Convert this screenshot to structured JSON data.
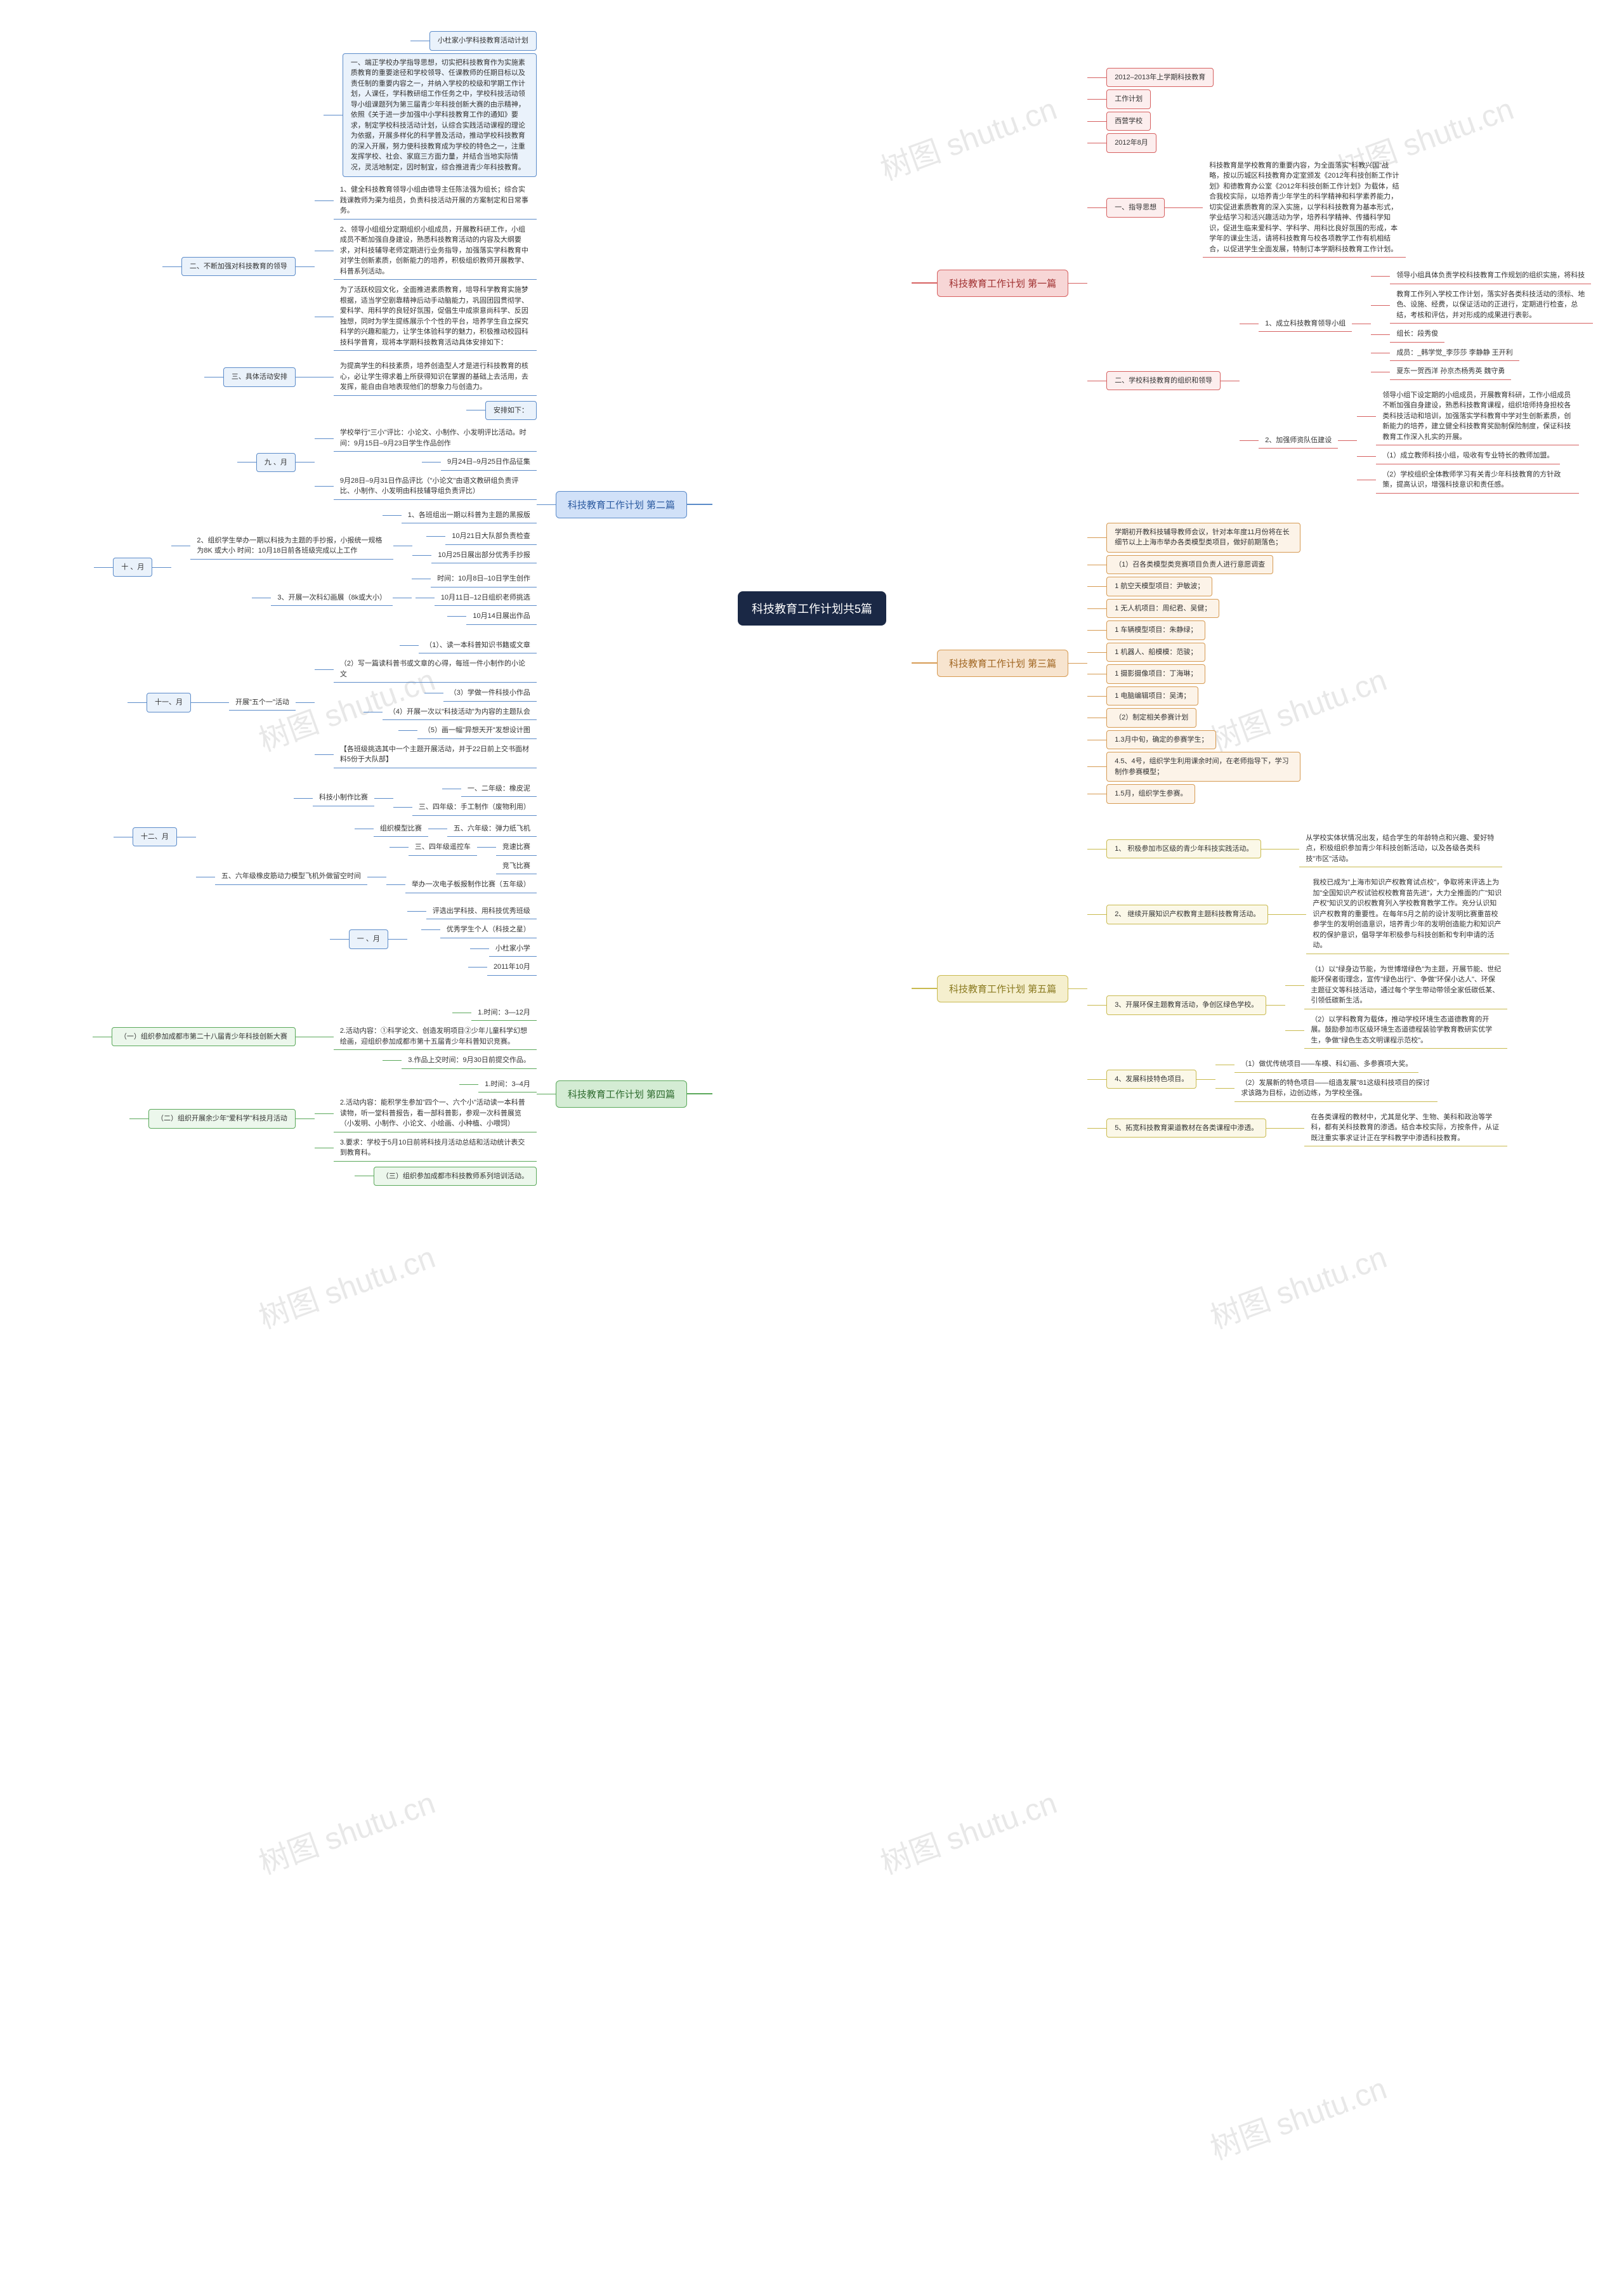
{
  "center": "科技教育工作计划共5篇",
  "watermarks": [
    "树图 shutu.cn",
    "树图 shutu.cn",
    "树图 shutu.cn",
    "树图 shutu.cn",
    "树图 shutu.cn",
    "树图 shutu.cn",
    "树图 shutu.cn",
    "树图 shutu.cn",
    "树图 shutu.cn"
  ],
  "branches": {
    "b2": {
      "label": "科技教育工作计划 第二篇",
      "side": "left",
      "color": "c-blue",
      "children": [
        {
          "t": "小杜家小学科技教育活动计划",
          "k": []
        },
        {
          "t": "一、端正学校办学指导思想，切实把科技教育作为实施素质教育的重要途径和学校领导、任课教师的任期目标以及责任制的重要内容之一，并纳入学校的校级和学期工作计划，人课任，学科教研组工作任务之中，学校科技活动领导小组课题列为第三届青少年科技创新大赛的由示精神，依照《关于进一步加强中小学科技教育工作的通知》要求，制定学校科技活动计划，认综合实践活动课程的理论为依据，开展多样化的科学普及活动，推动学校科技教育的深入开展，努力使科技教育成为学校的特色之一，注重发挥学校、社会、家庭三方面力量，并结合当地实际情况，灵活地制定，因时制宜，综合推进青少年科技教育。",
          "k": []
        },
        {
          "t": "二、不断加强对科技教育的领导",
          "k": [
            {
              "t": "1、健全科技教育领导小组由德导主任陈法强为组长；综合实践课教师为渠为组员，负责科技活动开展的方案制定和日常事务。"
            },
            {
              "t": "2、领导小组组分定期组织小组成员，开展教科研工作，小组成员不断加强自身建设，熟悉科技教育活动的内容及大纲要求，对科技辅导老师定期进行业务指导，加强落实学科教育中对学生创新素质，创新能力的培养，积极组织教师开展教学、科普系列活动。"
            },
            {
              "t": "为了活跃校园文化，全面推进素质教育，培导科学教育实施梦根据，适当学空剧靠精神后动手动脑能力，巩固团园贯彻学、爱科学、用科学的良轻好氛围，促倡生中成崇意尚科学、反因独想，同时为学生提练展示个个性的平台，培养学生自立探究科学的兴趣和能力，让学生体验科学的魅力，积极推动校园科技科学普育，现将本学期科技教育活动具体安排如下："
            }
          ]
        },
        {
          "t": "三、具体活动安排",
          "k": [
            {
              "t": "为提高学生的科技素质，培养创造型人才是进行科技教育的核心，必让学生得求着上所获得知识在掌握的基础上去活用，去发挥，能自由自地表现他们的想象力与创造力。"
            }
          ]
        },
        {
          "t": "安排如下：",
          "k": []
        },
        {
          "t": "九 、月",
          "k": [
            {
              "t": "学校举行\"三小\"评比：小论文、小制作、小发明评比活动。时间：9月15日–9月23日学生作品创作"
            },
            {
              "t": "9月24日–9月25日作品征集"
            },
            {
              "t": "9月28日–9月31日作品评比（\"小论文\"由语文教研组负责评比、小制作、小发明由科技辅导组负责评比）"
            }
          ]
        },
        {
          "t": "十 、月",
          "k": [
            {
              "t": "1、各班组出一期以科普为主题的黑报版"
            },
            {
              "t": "2、组织学生举办一期以科技为主题的手抄报，小报统一规格为8K 或大小 时间：10月18日前各班级完成以上工作",
              "k": [
                {
                  "t": "10月21日大队部负责检查"
                },
                {
                  "t": "10月25日展出部分优秀手抄报"
                }
              ]
            },
            {
              "t": "3、开展一次科幻画展（8k或大小）",
              "k": [
                {
                  "t": "时间：10月8日–10日学生创作"
                },
                {
                  "t": "10月11日–12日组织老师挑选"
                },
                {
                  "t": "10月14日展出作品"
                }
              ]
            }
          ]
        },
        {
          "t": "十一、月",
          "k": [
            {
              "t": "开展\"五个一\"活动",
              "k": [
                {
                  "t": "（1）、读一本科普知识书籍或文章"
                },
                {
                  "t": "（2）写一篇读科普书或文章的心得，每班一件小制作的小论文"
                },
                {
                  "t": "（3）学做一件科技小作品"
                },
                {
                  "t": "（4）开展一次以\"科技活动\"为内容的主题队会"
                },
                {
                  "t": "（5）画一幅\"异想天开\"发想设计图"
                },
                {
                  "t": "【各班级挑选其中一个主题开展活动，并于22日前上交书面材料5份于大队部】"
                }
              ]
            }
          ]
        },
        {
          "t": "十二、月",
          "k": [
            {
              "t": "科技小制作比赛",
              "k": [
                {
                  "t": "一、二年级：橡皮泥"
                },
                {
                  "t": "三、四年级：手工制作（废物利用）"
                }
              ]
            },
            {
              "t": "组织模型比赛",
              "sub": "五、六年级：弹力纸飞机"
            },
            {
              "t": "三、四年级遥控车",
              "sub": "竞速比赛"
            },
            {
              "t": "五、六年级橡皮筋动力模型飞机外做留空时间",
              "sub": "竞飞比赛",
              "k": [
                {
                  "t": "举办一次电子板报制作比赛（五年级）"
                }
              ]
            }
          ]
        },
        {
          "t": "一 、月",
          "k": [
            {
              "t": "评选出学科技、用科技优秀班级"
            },
            {
              "t": "优秀学生个人（科技之星）"
            },
            {
              "t": "小杜家小学"
            },
            {
              "t": "2011年10月"
            }
          ]
        }
      ]
    },
    "b4": {
      "label": "科技教育工作计划 第四篇",
      "side": "left",
      "color": "c-green",
      "children": [
        {
          "t": "（一）组织参加成都市第二十八届青少年科技创新大赛",
          "k": [
            {
              "t": "1.时间：3—12月"
            },
            {
              "t": "2.活动内容：①科学论文、创造发明项目②少年儿童科学幻想绘画，迎组织参加成都市第十五届青少年科普知识竞赛。"
            },
            {
              "t": "3.作品上交时间：9月30日前提交作品。"
            }
          ]
        },
        {
          "t": "（二）组织开展余少年\"爱科学\"科技月活动",
          "k": [
            {
              "t": "1.时间：3–4月"
            },
            {
              "t": "2.活动内容：能积学生参加\"四个一、六个小\"活动读一本科普读物，听一堂科普报告，看一部科普影，参观一次科普展览（小发明、小制作、小论文、小绘画、小种植、小喂饲）"
            },
            {
              "t": "3.要求：学校于5月10日前将科技月活动总结和活动统计表交到教育科。"
            }
          ]
        },
        {
          "t": "（三）组织参加成都市科技教师系列培训活动。",
          "k": []
        }
      ]
    },
    "b1": {
      "label": "科技教育工作计划 第一篇",
      "side": "right",
      "color": "c-red",
      "children": [
        {
          "t": "2012–2013年上学期科技教育",
          "k": []
        },
        {
          "t": "工作计划",
          "k": []
        },
        {
          "t": "西营学校",
          "k": []
        },
        {
          "t": "2012年8月",
          "k": []
        },
        {
          "t": "一、指导思想",
          "k": [
            {
              "t": "科技教育是学校教育的重要内容，为全面落实\"科教兴国\"战略，按以历城区科技教育办定室颁发《2012年科技创新工作计划》和德教育办公室《2012年科技创新工作计划》为载体，结合我校实际，以培养青少年学生的科学精神和科学素养能力，切实促进素质教育的深入实施，以学科科技教育为基本形式，学业结学习和活兴趣活动为学，培养科学精神、传播科学知识，促进生临来爱科学、学科学、用科比良好氛围的形成，本学年的课业生活，请将科技教育与校各项教学工作有机相结合，以促进学生全面发展，特制订本学期科技教育工作计划。"
            }
          ]
        },
        {
          "t": "二、学校科技教育的组织和领导",
          "k": [
            {
              "t": "1、成立科技教育领导小组",
              "k": [
                {
                  "t": "领导小组具体负责学校科技教育工作规划的组织实施，将科技"
                },
                {
                  "t": "教育工作列入学校工作计划，落实好各类科技活动的须标、地色、设施、经费，以保证活动的正进行，定期进行检查，总结，考核和评估，并对形成的成果进行表彰。"
                },
                {
                  "t": "组长：段秀俊"
                },
                {
                  "t": "成员：_韩学觉_李莎莎 李静静 王开利"
                },
                {
                  "t": "夏东一贺西洋 孙京杰杨秀英 魏守勇"
                }
              ]
            },
            {
              "t": "2、加强师资队伍建设",
              "k": [
                {
                  "t": "领导小组下设定期的小组成员，开展教育科研，工作小组成员不断加强自身建设，熟悉科技教育课程，组织培师持身担校各类科技活动和培训，加强落实学科教育中学对生创新素质，创新能力的培养，建立健全科技教育奖励制保险制度，保证科技教育工作深入扎实的开展。"
                },
                {
                  "t": "（1）成立教师科技小组，吸收有专业特长的教师加盟。"
                },
                {
                  "t": "（2）学校组织全体教师学习有关青少年科技教育的方针政策，提高认识，增强科技意识和责任感。"
                }
              ]
            }
          ]
        }
      ]
    },
    "b3": {
      "label": "科技教育工作计划 第三篇",
      "side": "right",
      "color": "c-orange",
      "children": [
        {
          "t": "学期初开教科技辅导教师会议，针对本年度11月份将在长细节以上上海市举办各类模型类项目，做好前期落色；",
          "k": []
        },
        {
          "t": "（1）召各类模型类竞赛项目负责人进行意愿调查",
          "k": []
        },
        {
          "t": "1 航空天模型项目：尹敏波；",
          "k": []
        },
        {
          "t": "1 无人机项目：周纪君、吴健；",
          "k": []
        },
        {
          "t": "1 车辆模型项目：朱静绿；",
          "k": []
        },
        {
          "t": "1 机器人、船模模：范骏；",
          "k": []
        },
        {
          "t": "1 摄影摄像项目：丁海琳；",
          "k": []
        },
        {
          "t": "1 电脑编辑项目：吴涛；",
          "k": []
        },
        {
          "t": "（2）制定相关参赛计划",
          "k": []
        },
        {
          "t": "1.3月中旬，确定的参赛学生；",
          "k": []
        },
        {
          "t": "4.5、4号，组织学生利用课余时间，在老师指导下，学习制作参赛模型；",
          "k": []
        },
        {
          "t": "1.5月，组织学生参赛。",
          "k": []
        }
      ]
    },
    "b5": {
      "label": "科技教育工作计划 第五篇",
      "side": "right",
      "color": "c-yellow",
      "children": [
        {
          "t": "1、 积极参加市区级的青少年科技实践活动。",
          "k": [
            {
              "t": "从学校实体状情况出发，结合学生的年龄特点和兴趣、爱好特点，积极组织参加青少年科技创新活动，以及各级各类科技\"市区\"活动。"
            }
          ]
        },
        {
          "t": "2、 继续开展知识产权教育主题科技教育活动。",
          "k": [
            {
              "t": "我校已成为\"上海市知识产权教育试点校\"，争取将来评选上为加\"全国知识产权试验权校教育苗先进\"，大力全推面的广\"知识产权\"知识叉的识权教育列入学校教育教学工作。充分认识知识产权教育的重要性。在每年5月之前的设计发明比赛重苗校参学生的发明创造意识，培养青少年的发明创造能力和知识产权的保护意识，倡导学年积极参与科技创新和专利申请的活动。"
            }
          ]
        },
        {
          "t": "3、开展环保主题教育活动，争创区绿色学校。",
          "k": [
            {
              "t": "（1）以\"绿身边节能，为世博增绿色\"为主题，开展节能、世纪能环保者街理念，宣传\"绿色出行\"、争做\"环保小达人\"、环保主题征文等科技活动，通过每个学生带动带领全家低碳低某、引领低碳新生活。"
            },
            {
              "t": "（2）以学科教育为载体，推动学校环境生态道德教育的开展。鼓励参加市区级环境生态道德程装验学教育教研实优学生，争做\"绿色生态文明课程示范校\"。"
            }
          ]
        },
        {
          "t": "4、发展科技特色项目。",
          "k": [
            {
              "t": "（1）做优传统项目——车模、科幻画、多参赛项大奖。"
            },
            {
              "t": "（2）发展新的特色项目——组造发展\"81这级科技项目的探讨求该路为目标，边创边练，为学校坐强。"
            }
          ]
        },
        {
          "t": "5、拓宽科技教育渠道教材在各类课程中渗透。",
          "k": [
            {
              "t": "在各类课程的教材中，尤其是化学、生物、美科和政治等学科，都有关科技教育的渗透。结合本校实际，方按条件，从证既注重实事求证计正在学科教学中渗透科技教育。"
            }
          ]
        }
      ]
    }
  }
}
